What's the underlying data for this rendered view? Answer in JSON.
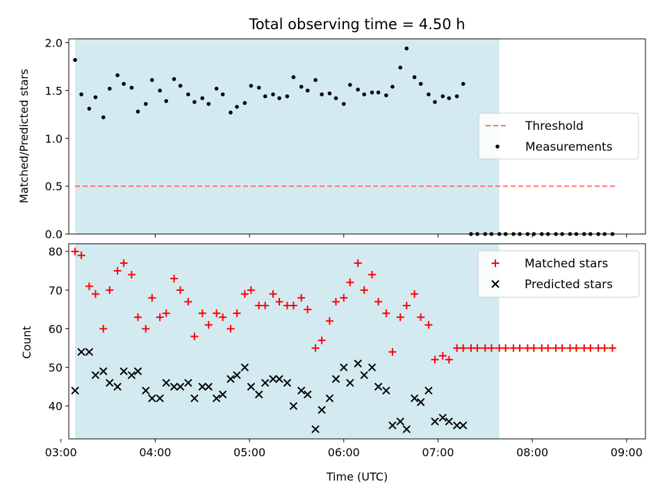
{
  "chart_data": [
    {
      "type": "scatter",
      "title": "Total observing time = 4.50 h",
      "ylabel": "Matched/Predicted stars",
      "xlabel": "",
      "xlim": [
        "03:05",
        "09:12"
      ],
      "ylim": [
        0,
        2.04
      ],
      "yticks": [
        "0.0",
        "0.5",
        "1.0",
        "1.5",
        "2.0"
      ],
      "xticks": [
        "03:00",
        "04:00",
        "05:00",
        "06:00",
        "07:00",
        "08:00",
        "09:00"
      ],
      "observing_window": [
        "03:09",
        "07:39"
      ],
      "legend_position": "center-right",
      "colors": {
        "window": "#d3eaf0",
        "threshold": "#ff7070",
        "measurements": "#000000"
      },
      "series": [
        {
          "name": "Threshold",
          "style": "dashed-line",
          "x": [
            "03:09",
            "08:54"
          ],
          "y": [
            0.5,
            0.5
          ]
        },
        {
          "name": "Measurements",
          "style": "dot",
          "x": [
            "03:09",
            "03:13",
            "03:18",
            "03:22",
            "03:27",
            "03:31",
            "03:36",
            "03:40",
            "03:45",
            "03:49",
            "03:54",
            "03:58",
            "04:03",
            "04:07",
            "04:12",
            "04:16",
            "04:21",
            "04:25",
            "04:30",
            "04:34",
            "04:39",
            "04:43",
            "04:48",
            "04:52",
            "04:57",
            "05:01",
            "05:06",
            "05:10",
            "05:15",
            "05:19",
            "05:24",
            "05:28",
            "05:33",
            "05:37",
            "05:42",
            "05:46",
            "05:51",
            "05:55",
            "06:00",
            "06:04",
            "06:09",
            "06:13",
            "06:18",
            "06:22",
            "06:27",
            "06:31",
            "06:36",
            "06:40",
            "06:45",
            "06:49",
            "06:54",
            "06:58",
            "07:03",
            "07:07",
            "07:12",
            "07:16",
            "07:21",
            "07:25",
            "07:30",
            "07:34",
            "07:39",
            "07:43",
            "07:48",
            "07:52",
            "07:57",
            "08:01",
            "08:06",
            "08:10",
            "08:15",
            "08:19",
            "08:24",
            "08:28",
            "08:33",
            "08:37",
            "08:42",
            "08:46",
            "08:51"
          ],
          "y": [
            1.82,
            1.46,
            1.31,
            1.43,
            1.22,
            1.52,
            1.66,
            1.57,
            1.53,
            1.28,
            1.36,
            1.61,
            1.5,
            1.39,
            1.62,
            1.55,
            1.46,
            1.38,
            1.42,
            1.36,
            1.52,
            1.46,
            1.27,
            1.33,
            1.37,
            1.55,
            1.53,
            1.44,
            1.46,
            1.42,
            1.44,
            1.64,
            1.54,
            1.5,
            1.61,
            1.46,
            1.47,
            1.42,
            1.36,
            1.56,
            1.51,
            1.46,
            1.48,
            1.48,
            1.45,
            1.54,
            1.74,
            1.94,
            1.64,
            1.57,
            1.46,
            1.38,
            1.44,
            1.42,
            1.44,
            1.57,
            0,
            0,
            0,
            0,
            0,
            0,
            0,
            0,
            0,
            0,
            0,
            0,
            0,
            0,
            0,
            0,
            0,
            0,
            0,
            0,
            0
          ]
        }
      ]
    },
    {
      "type": "scatter",
      "title": "",
      "ylabel": "Count",
      "xlabel": "Time (UTC)",
      "xlim": [
        "03:05",
        "09:12"
      ],
      "ylim": [
        31.5,
        82
      ],
      "yticks": [
        "40",
        "50",
        "60",
        "70",
        "80"
      ],
      "xticks": [
        "03:00",
        "04:00",
        "05:00",
        "06:00",
        "07:00",
        "08:00",
        "09:00"
      ],
      "observing_window": [
        "03:09",
        "07:39"
      ],
      "legend_position": "top-right",
      "colors": {
        "window": "#d3eaf0",
        "matched": "#ff0000",
        "predicted": "#000000"
      },
      "series": [
        {
          "name": "Matched stars",
          "marker": "plus",
          "x": [
            "03:09",
            "03:13",
            "03:18",
            "03:22",
            "03:27",
            "03:31",
            "03:36",
            "03:40",
            "03:45",
            "03:49",
            "03:54",
            "03:58",
            "04:03",
            "04:07",
            "04:12",
            "04:16",
            "04:21",
            "04:25",
            "04:30",
            "04:34",
            "04:39",
            "04:43",
            "04:48",
            "04:52",
            "04:57",
            "05:01",
            "05:06",
            "05:10",
            "05:15",
            "05:19",
            "05:24",
            "05:28",
            "05:33",
            "05:37",
            "05:42",
            "05:46",
            "05:51",
            "05:55",
            "06:00",
            "06:04",
            "06:09",
            "06:13",
            "06:18",
            "06:22",
            "06:27",
            "06:31",
            "06:36",
            "06:40",
            "06:45",
            "06:49",
            "06:54",
            "06:58",
            "07:03",
            "07:07",
            "07:12",
            "07:16",
            "07:21",
            "07:25",
            "07:30",
            "07:34",
            "07:39",
            "07:43",
            "07:48",
            "07:52",
            "07:57",
            "08:01",
            "08:06",
            "08:10",
            "08:15",
            "08:19",
            "08:24",
            "08:28",
            "08:33",
            "08:37",
            "08:42",
            "08:46",
            "08:51"
          ],
          "y": [
            80,
            79,
            71,
            69,
            60,
            70,
            75,
            77,
            74,
            63,
            60,
            68,
            63,
            64,
            73,
            70,
            67,
            58,
            64,
            61,
            64,
            63,
            60,
            64,
            69,
            70,
            66,
            66,
            69,
            67,
            66,
            66,
            68,
            65,
            55,
            57,
            62,
            67,
            68,
            72,
            77,
            70,
            74,
            67,
            64,
            54,
            63,
            66,
            69,
            63,
            61,
            52,
            53,
            52,
            55,
            55,
            55,
            55,
            55,
            55,
            55,
            55,
            55,
            55,
            55,
            55,
            55,
            55,
            55,
            55,
            55,
            55,
            55,
            55,
            55,
            55,
            55
          ]
        },
        {
          "name": "Predicted stars",
          "marker": "x",
          "x": [
            "03:09",
            "03:13",
            "03:18",
            "03:22",
            "03:27",
            "03:31",
            "03:36",
            "03:40",
            "03:45",
            "03:49",
            "03:54",
            "03:58",
            "04:03",
            "04:07",
            "04:12",
            "04:16",
            "04:21",
            "04:25",
            "04:30",
            "04:34",
            "04:39",
            "04:43",
            "04:48",
            "04:52",
            "04:57",
            "05:01",
            "05:06",
            "05:10",
            "05:15",
            "05:19",
            "05:24",
            "05:28",
            "05:33",
            "05:37",
            "05:42",
            "05:46",
            "05:51",
            "05:55",
            "06:00",
            "06:04",
            "06:09",
            "06:13",
            "06:18",
            "06:22",
            "06:27",
            "06:31",
            "06:36",
            "06:40",
            "06:45",
            "06:49",
            "06:54",
            "06:58",
            "07:03",
            "07:07",
            "07:12",
            "07:16"
          ],
          "y": [
            44,
            54,
            54,
            48,
            49,
            46,
            45,
            49,
            48,
            49,
            44,
            42,
            42,
            46,
            45,
            45,
            46,
            42,
            45,
            45,
            42,
            43,
            47,
            48,
            50,
            45,
            43,
            46,
            47,
            47,
            46,
            40,
            44,
            43,
            34,
            39,
            42,
            47,
            50,
            46,
            51,
            48,
            50,
            45,
            44,
            35,
            36,
            34,
            42,
            41,
            44,
            36,
            37,
            36,
            35,
            35
          ]
        }
      ]
    }
  ]
}
